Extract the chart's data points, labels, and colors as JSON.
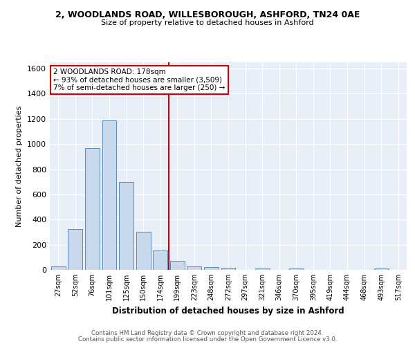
{
  "title_line1": "2, WOODLANDS ROAD, WILLESBOROUGH, ASHFORD, TN24 0AE",
  "title_line2": "Size of property relative to detached houses in Ashford",
  "xlabel": "Distribution of detached houses by size in Ashford",
  "ylabel": "Number of detached properties",
  "bar_labels": [
    "27sqm",
    "52sqm",
    "76sqm",
    "101sqm",
    "125sqm",
    "150sqm",
    "174sqm",
    "199sqm",
    "223sqm",
    "248sqm",
    "272sqm",
    "297sqm",
    "321sqm",
    "346sqm",
    "370sqm",
    "395sqm",
    "419sqm",
    "444sqm",
    "468sqm",
    "493sqm",
    "517sqm"
  ],
  "bar_values": [
    25,
    325,
    970,
    1190,
    700,
    300,
    155,
    70,
    30,
    20,
    15,
    0,
    13,
    0,
    12,
    0,
    0,
    0,
    0,
    13,
    0
  ],
  "bar_color": "#c9d9ed",
  "bar_edge_color": "#5b8db8",
  "vline_x_index": 6,
  "vline_color": "#cc0000",
  "annotation_text": "2 WOODLANDS ROAD: 178sqm\n← 93% of detached houses are smaller (3,509)\n7% of semi-detached houses are larger (250) →",
  "annotation_box_color": "#ffffff",
  "annotation_box_edge": "#cc0000",
  "ylim": [
    0,
    1650
  ],
  "yticks": [
    0,
    200,
    400,
    600,
    800,
    1000,
    1200,
    1400,
    1600
  ],
  "background_color": "#e8eef8",
  "footer_line1": "Contains HM Land Registry data © Crown copyright and database right 2024.",
  "footer_line2": "Contains public sector information licensed under the Open Government Licence v3.0."
}
